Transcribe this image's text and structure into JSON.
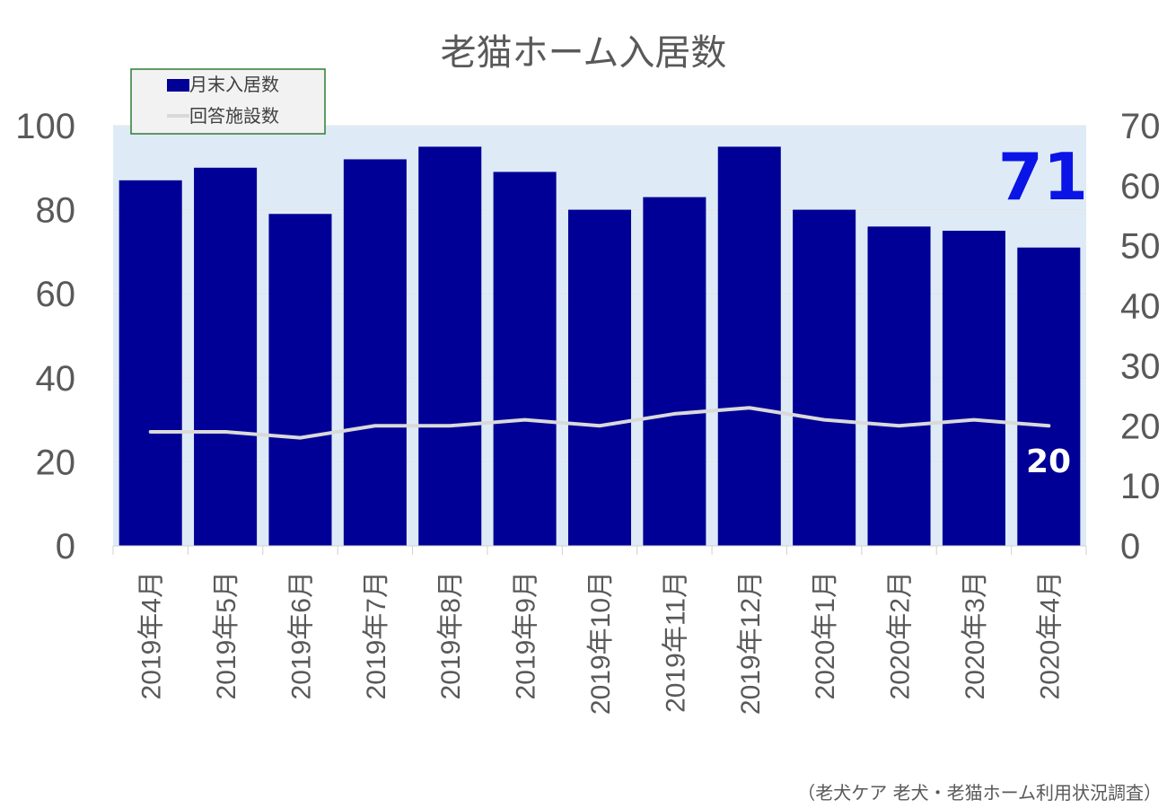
{
  "chart_data": {
    "type": "bar",
    "title": "老猫ホーム入居数",
    "categories": [
      "2019年4月",
      "2019年5月",
      "2019年6月",
      "2019年7月",
      "2019年8月",
      "2019年9月",
      "2019年10月",
      "2019年11月",
      "2019年12月",
      "2020年1月",
      "2020年2月",
      "2020年3月",
      "2020年4月"
    ],
    "series": [
      {
        "name": "月末入居数",
        "type": "bar",
        "axis": "left",
        "color": "#000096",
        "values": [
          87,
          90,
          79,
          92,
          95,
          89,
          80,
          83,
          95,
          80,
          76,
          75,
          71
        ]
      },
      {
        "name": "回答施設数",
        "type": "line",
        "axis": "right",
        "color": "#d9d9d9",
        "values": [
          19,
          19,
          18,
          20,
          20,
          21,
          20,
          22,
          23,
          21,
          20,
          21,
          20
        ]
      }
    ],
    "ylim_left": [
      0,
      100
    ],
    "ylim_right": [
      0,
      70
    ],
    "yticks_left": [
      "0",
      "20",
      "40",
      "60",
      "80",
      "100"
    ],
    "yticks_right": [
      "0",
      "10",
      "20",
      "30",
      "40",
      "50",
      "60",
      "70"
    ],
    "legend": "top-left",
    "grid": true,
    "plot_background": "#deebf7",
    "annotations": {
      "last_bar_value": "71",
      "last_line_value": "20"
    }
  },
  "source": "（老犬ケア 老犬・老猫ホーム利用状況調査）"
}
